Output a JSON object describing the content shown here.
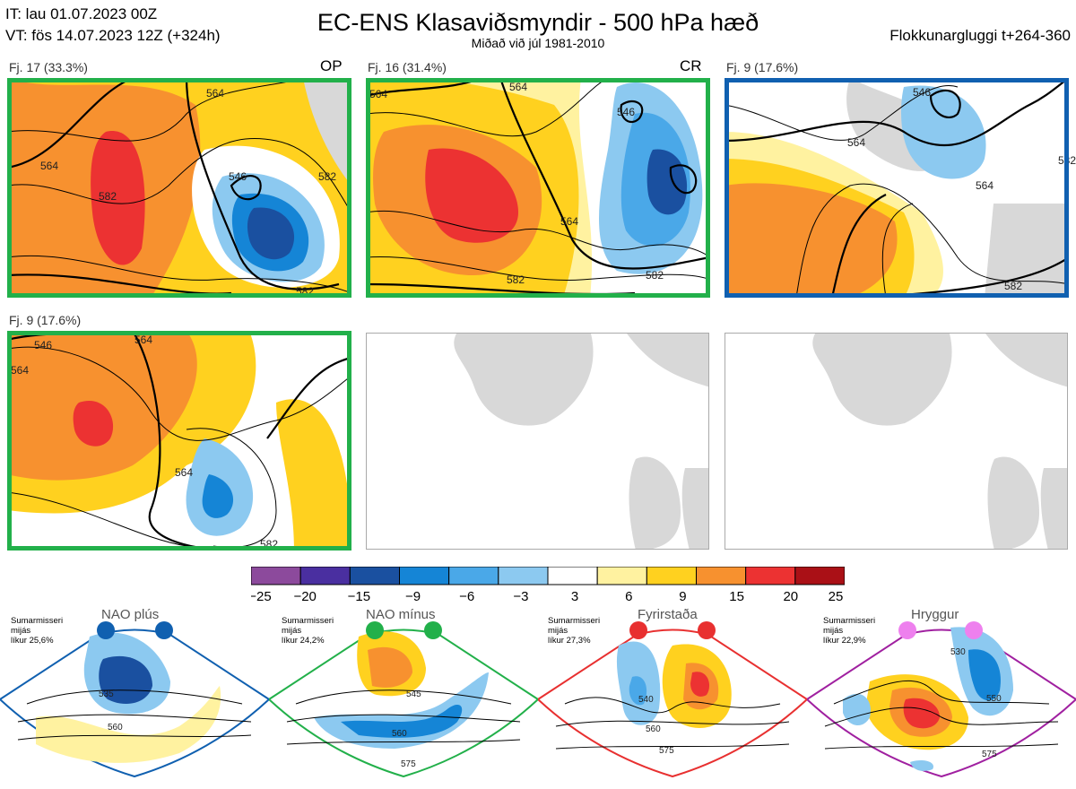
{
  "header": {
    "init": "IT: lau 01.07.2023 00Z",
    "valid": "VT: fös 14.07.2023 12Z  (+324h)",
    "title": "EC-ENS Klasaviðsmyndir - 500 hPa hæð",
    "subtitle": "Miðað við júl 1981-2010",
    "window": "Flokkunargluggi t+264-360"
  },
  "colors": {
    "green": "#22b04a",
    "blue": "#1060b0",
    "red": "#e83030",
    "purple": "#a020a0",
    "land_gray": "#d8d8d8",
    "coast": "#8a6a50"
  },
  "panels": [
    {
      "label": "Fj. 17 (33.3%)",
      "tag": "OP",
      "border": "#22b04a",
      "contours": [
        "546",
        "564",
        "564",
        "582",
        "582",
        "582"
      ]
    },
    {
      "label": "Fj. 16 (31.4%)",
      "tag": "CR",
      "border": "#22b04a",
      "contours": [
        "546",
        "564",
        "564",
        "564",
        "582",
        "582"
      ]
    },
    {
      "label": "Fj. 9 (17.6%)",
      "tag": "",
      "border": "#1060b0",
      "contours": [
        "546",
        "564",
        "564",
        "582",
        "582"
      ]
    },
    {
      "label": "Fj. 9 (17.6%)",
      "tag": "",
      "border": "#22b04a",
      "contours": [
        "546",
        "564",
        "564",
        "564",
        "582"
      ]
    }
  ],
  "chart_data": {
    "type": "heatmap",
    "title": "EC-ENS Klasaviðsmyndir - 500 hPa hæð",
    "colorbar": {
      "ticks": [
        "−25",
        "−20",
        "−15",
        "−9",
        "−6",
        "−3",
        "3",
        "6",
        "9",
        "15",
        "20",
        "25"
      ],
      "colors": [
        "#8c4a9c",
        "#4a2fa0",
        "#1a50a0",
        "#1585d6",
        "#4aa8e8",
        "#8cc9f0",
        "#ffffff",
        "#fff2a0",
        "#ffd11f",
        "#f7912f",
        "#ec3232",
        "#aa1016"
      ]
    },
    "clusters": [
      {
        "name": "Fj. 17",
        "percent": 33.3
      },
      {
        "name": "Fj. 16",
        "percent": 31.4
      },
      {
        "name": "Fj. 9",
        "percent": 17.6
      },
      {
        "name": "Fj. 9",
        "percent": 17.6
      }
    ]
  },
  "regimes": [
    {
      "name": "NAO plús",
      "season": "Sumarmisseri",
      "period": "mijás",
      "prob": "líkur 25,6%",
      "color": "#1060b0",
      "labels": [
        "535",
        "560"
      ]
    },
    {
      "name": "NAO mínus",
      "season": "Sumarmisseri",
      "period": "mijás",
      "prob": "líkur 24,2%",
      "color": "#22b04a",
      "labels": [
        "545",
        "560",
        "575"
      ]
    },
    {
      "name": "Fyrirstaða",
      "season": "Sumarmisseri",
      "period": "mijás",
      "prob": "líkur 27,3%",
      "color": "#e83030",
      "labels": [
        "540",
        "560",
        "575"
      ]
    },
    {
      "name": "Hryggur",
      "season": "Sumarmisseri",
      "period": "mijás",
      "prob": "líkur 22,9%",
      "color": "#a020a0",
      "labels": [
        "530",
        "550",
        "575"
      ]
    }
  ]
}
